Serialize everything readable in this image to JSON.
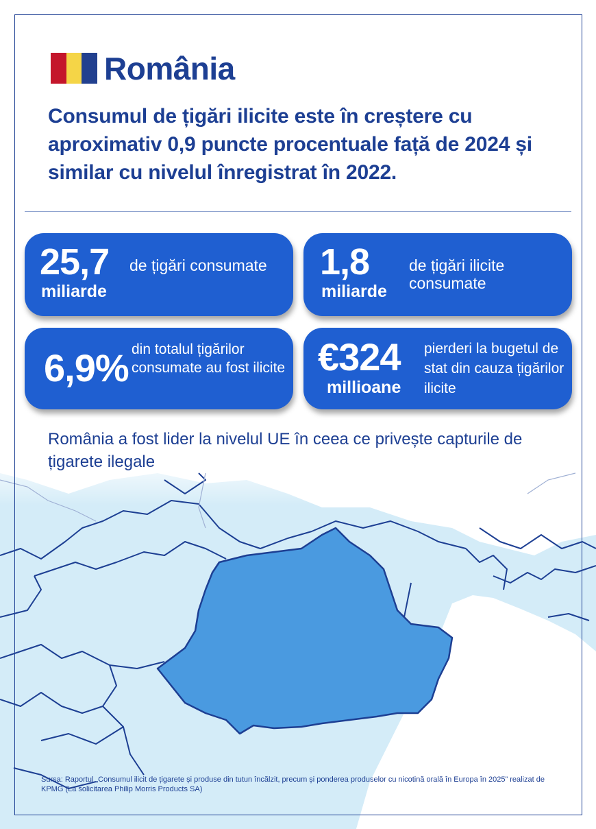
{
  "colors": {
    "navy": "#1d3f93",
    "card_blue": "#1f5fd1",
    "romania_fill": "#4a9ae0",
    "neighbor_fill": "#cfeaf7",
    "flag": [
      "#c4162b",
      "#f5d547",
      "#22408f"
    ]
  },
  "header": {
    "country": "România",
    "headline": "Consumul de țigări ilicite este în creștere cu aproximativ 0,9 puncte procentuale față de 2024 și similar cu nivelul înregistrat în 2022."
  },
  "stats": [
    {
      "value": "25,7",
      "unit": "miliarde",
      "description": "de țigări consumate"
    },
    {
      "value": "1,8",
      "unit": "miliarde",
      "description": "de țigări ilicite consumate"
    },
    {
      "value": "6,9%",
      "unit": "",
      "description": "din totalul țigărilor consumate au fost ilicite"
    },
    {
      "value": "€324",
      "unit": "millioane",
      "description": "pierderi la bugetul de stat din cauza țigărilor ilicite"
    }
  ],
  "subtitle": "România a fost lider la nivelul UE în ceea ce privește capturile de țigarete ilegale",
  "map": {
    "highlighted_country_icon": "romania-map-shape"
  },
  "source": "Sursa: Raportul „Consumul ilicit de țigarete și produse din tutun încălzit, precum și ponderea produselor cu nicotină orală în Europa în 2025” realizat de KPMG (La solicitarea Philip Morris Products SA)"
}
